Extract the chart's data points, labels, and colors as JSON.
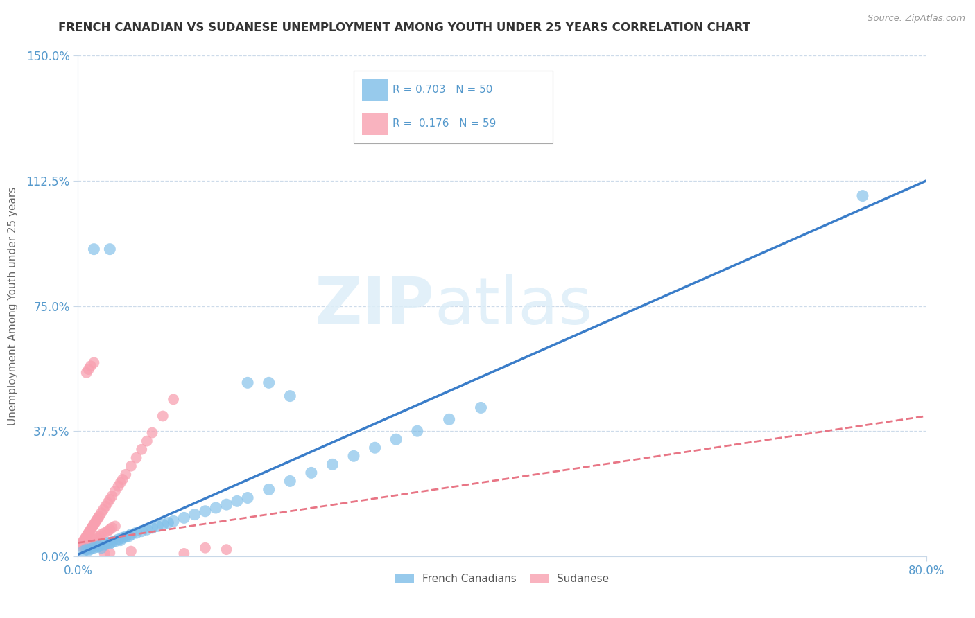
{
  "title": "FRENCH CANADIAN VS SUDANESE UNEMPLOYMENT AMONG YOUTH UNDER 25 YEARS CORRELATION CHART",
  "source": "Source: ZipAtlas.com",
  "ylabel": "Unemployment Among Youth under 25 years",
  "xlim": [
    0.0,
    0.8
  ],
  "ylim": [
    0.0,
    1.5
  ],
  "yticks": [
    0.0,
    0.375,
    0.75,
    1.125,
    1.5
  ],
  "ytick_labels": [
    "0.0%",
    "37.5%",
    "75.0%",
    "112.5%",
    "150.0%"
  ],
  "xtick_labels": [
    "0.0%",
    "80.0%"
  ],
  "xticks": [
    0.0,
    0.8
  ],
  "french_canadian_color": "#7dbde8",
  "sudanese_color": "#f8a0b0",
  "french_trend_color": "#3a7dc9",
  "sudanese_trend_color": "#e87585",
  "watermark_zip": "ZIP",
  "watermark_atlas": "atlas",
  "background_color": "#ffffff",
  "grid_color": "#c8d8e8",
  "axis_color": "#5599cc",
  "title_color": "#333333",
  "ylabel_color": "#666666",
  "french_x": [
    0.005,
    0.008,
    0.01,
    0.012,
    0.015,
    0.018,
    0.02,
    0.022,
    0.025,
    0.028,
    0.03,
    0.032,
    0.035,
    0.038,
    0.04,
    0.042,
    0.045,
    0.048,
    0.05,
    0.055,
    0.06,
    0.065,
    0.07,
    0.075,
    0.08,
    0.085,
    0.09,
    0.1,
    0.11,
    0.12,
    0.13,
    0.14,
    0.15,
    0.16,
    0.18,
    0.2,
    0.22,
    0.24,
    0.26,
    0.28,
    0.3,
    0.32,
    0.35,
    0.38,
    0.16,
    0.18,
    0.2,
    0.74,
    0.03,
    0.015
  ],
  "french_y": [
    0.015,
    0.02,
    0.018,
    0.022,
    0.025,
    0.028,
    0.03,
    0.025,
    0.035,
    0.04,
    0.038,
    0.042,
    0.045,
    0.05,
    0.048,
    0.055,
    0.058,
    0.06,
    0.065,
    0.07,
    0.075,
    0.08,
    0.085,
    0.09,
    0.095,
    0.1,
    0.105,
    0.115,
    0.125,
    0.135,
    0.145,
    0.155,
    0.165,
    0.175,
    0.2,
    0.225,
    0.25,
    0.275,
    0.3,
    0.325,
    0.35,
    0.375,
    0.41,
    0.445,
    0.52,
    0.52,
    0.48,
    1.08,
    0.92,
    0.92
  ],
  "fc_trend_x0": 0.0,
  "fc_trend_y0": 0.005,
  "fc_trend_x1": 0.8,
  "fc_trend_y1": 1.125,
  "su_trend_x0": 0.0,
  "su_trend_y0": 0.04,
  "su_trend_x1": 0.8,
  "su_trend_y1": 0.42,
  "sudanese_x": [
    0.002,
    0.003,
    0.004,
    0.005,
    0.006,
    0.007,
    0.008,
    0.009,
    0.01,
    0.011,
    0.012,
    0.013,
    0.014,
    0.015,
    0.016,
    0.017,
    0.018,
    0.019,
    0.02,
    0.022,
    0.024,
    0.026,
    0.028,
    0.03,
    0.032,
    0.035,
    0.038,
    0.04,
    0.042,
    0.045,
    0.05,
    0.055,
    0.06,
    0.065,
    0.07,
    0.08,
    0.09,
    0.1,
    0.12,
    0.14,
    0.008,
    0.01,
    0.012,
    0.015,
    0.018,
    0.02,
    0.022,
    0.025,
    0.028,
    0.03,
    0.032,
    0.035,
    0.008,
    0.01,
    0.012,
    0.015,
    0.025,
    0.03,
    0.05
  ],
  "sudanese_y": [
    0.03,
    0.035,
    0.04,
    0.045,
    0.05,
    0.055,
    0.06,
    0.065,
    0.07,
    0.075,
    0.08,
    0.085,
    0.09,
    0.095,
    0.1,
    0.105,
    0.11,
    0.115,
    0.12,
    0.13,
    0.14,
    0.15,
    0.16,
    0.17,
    0.18,
    0.195,
    0.21,
    0.22,
    0.23,
    0.245,
    0.27,
    0.295,
    0.32,
    0.345,
    0.37,
    0.42,
    0.47,
    0.008,
    0.025,
    0.02,
    0.035,
    0.04,
    0.045,
    0.05,
    0.055,
    0.06,
    0.065,
    0.07,
    0.075,
    0.08,
    0.085,
    0.09,
    0.55,
    0.56,
    0.57,
    0.58,
    0.008,
    0.01,
    0.015
  ]
}
